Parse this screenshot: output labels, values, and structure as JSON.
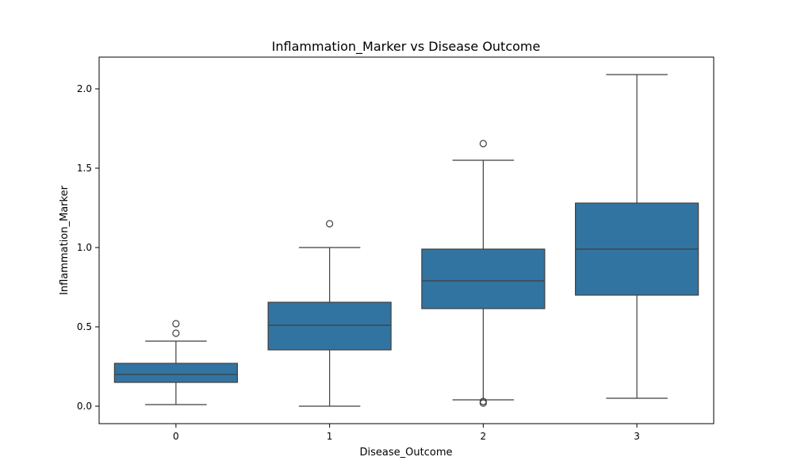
{
  "chart_data": {
    "type": "box",
    "title": "Inflammation_Marker vs Disease Outcome",
    "xlabel": "Disease_Outcome",
    "ylabel": "Inflammation_Marker",
    "ylim": [
      -0.11,
      2.2
    ],
    "yticks": [
      "0.0",
      "0.5",
      "1.0",
      "1.5",
      "2.0"
    ],
    "ytick_values": [
      0.0,
      0.5,
      1.0,
      1.5,
      2.0
    ],
    "categories": [
      "0",
      "1",
      "2",
      "3"
    ],
    "box_color": "#3274a1",
    "line_color": "#3f3f3f",
    "grid": false,
    "boxes": [
      {
        "category": "0",
        "whisker_low": 0.01,
        "q1": 0.15,
        "median": 0.2,
        "q3": 0.27,
        "whisker_high": 0.41,
        "fliers": [
          0.46,
          0.52
        ]
      },
      {
        "category": "1",
        "whisker_low": 0.0,
        "q1": 0.355,
        "median": 0.51,
        "q3": 0.655,
        "whisker_high": 1.0,
        "fliers": [
          1.15
        ]
      },
      {
        "category": "2",
        "whisker_low": 0.04,
        "q1": 0.615,
        "median": 0.79,
        "q3": 0.99,
        "whisker_high": 1.55,
        "fliers": [
          1.655,
          0.03,
          0.02
        ]
      },
      {
        "category": "3",
        "whisker_low": 0.05,
        "q1": 0.7,
        "median": 0.99,
        "q3": 1.28,
        "whisker_high": 2.09,
        "fliers": []
      }
    ]
  }
}
